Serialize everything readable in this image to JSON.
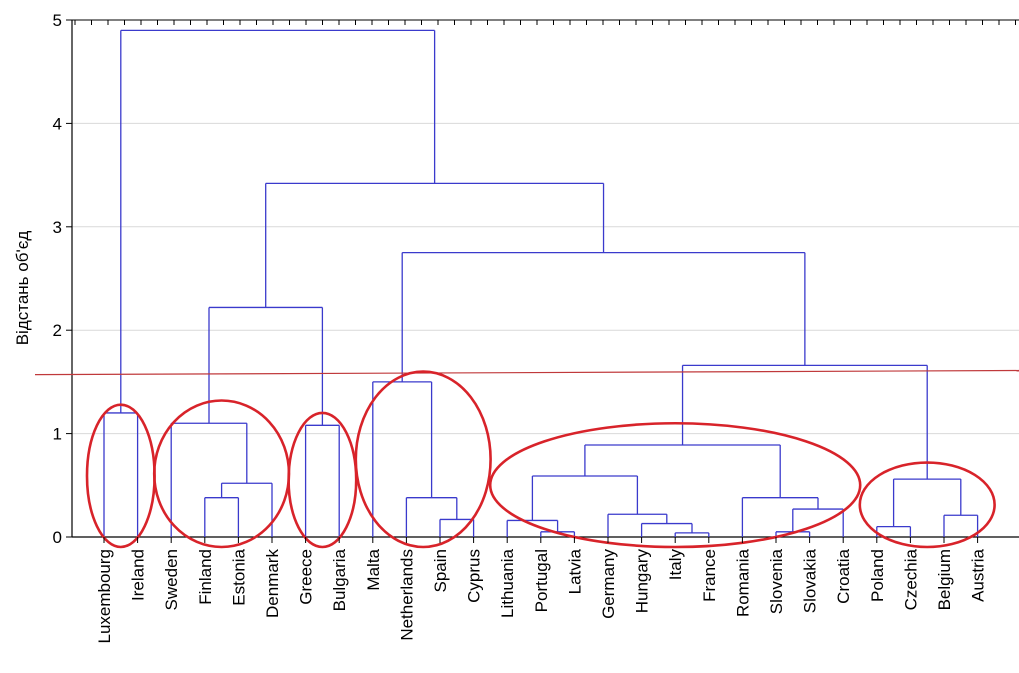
{
  "chart_data": {
    "type": "dendrogram",
    "ylabel": "Відстань об'єд",
    "ylim": [
      0,
      5
    ],
    "yticks": [
      0,
      1,
      2,
      3,
      4,
      5
    ],
    "grid": true,
    "colors": {
      "tree": "#3a3acc",
      "cutline": "#c0393b",
      "clusters": "#d8232a",
      "grid": "#d9d9d9"
    },
    "leaves": [
      "Luxembourg",
      "Ireland",
      "Sweden",
      "Finland",
      "Estonia",
      "Denmark",
      "Greece",
      "Bulgaria",
      "Malta",
      "Netherlands",
      "Spain",
      "Cyprus",
      "Lithuania",
      "Portugal",
      "Latvia",
      "Germany",
      "Hungary",
      "Italy",
      "France",
      "Romania",
      "Slovenia",
      "Slovakia",
      "Croatia",
      "Poland",
      "Czechia",
      "Belgium",
      "Austria"
    ],
    "merges": [
      {
        "a": "Italy",
        "b": "France",
        "height": 0.04,
        "id": "itfr"
      },
      {
        "a": "Portugal",
        "b": "Latvia",
        "height": 0.05,
        "id": "ptlv"
      },
      {
        "a": "Slovenia",
        "b": "Slovakia",
        "height": 0.05,
        "id": "sisk"
      },
      {
        "a": "Poland",
        "b": "Czechia",
        "height": 0.1,
        "id": "plcz"
      },
      {
        "a": "Hungary",
        "b": "itfr",
        "height": 0.13,
        "id": "hu_itfr"
      },
      {
        "a": "Lithuania",
        "b": "ptlv",
        "height": 0.16,
        "id": "lt_ptlv"
      },
      {
        "a": "Spain",
        "b": "Cyprus",
        "height": 0.17,
        "id": "escy"
      },
      {
        "a": "Belgium",
        "b": "Austria",
        "height": 0.21,
        "id": "beat"
      },
      {
        "a": "Germany",
        "b": "hu_itfr",
        "height": 0.22,
        "id": "de_grp"
      },
      {
        "a": "sisk",
        "b": "Croatia",
        "height": 0.27,
        "id": "sisk_hr"
      },
      {
        "a": "Finland",
        "b": "Estonia",
        "height": 0.38,
        "id": "fiee"
      },
      {
        "a": "Netherlands",
        "b": "escy",
        "height": 0.38,
        "id": "nl_grp"
      },
      {
        "a": "Romania",
        "b": "sisk_hr",
        "height": 0.38,
        "id": "ro_grp"
      },
      {
        "a": "fiee",
        "b": "Denmark",
        "height": 0.52,
        "id": "fiee_dk"
      },
      {
        "a": "plcz",
        "b": "beat",
        "height": 0.56,
        "id": "central"
      },
      {
        "a": "lt_ptlv",
        "b": "de_grp",
        "height": 0.59,
        "id": "baltic_de"
      },
      {
        "a": "baltic_de",
        "b": "ro_grp",
        "height": 0.89,
        "id": "mid"
      },
      {
        "a": "Greece",
        "b": "Bulgaria",
        "height": 1.08,
        "id": "grbg"
      },
      {
        "a": "Sweden",
        "b": "fiee_dk",
        "height": 1.1,
        "id": "nordic"
      },
      {
        "a": "Luxembourg",
        "b": "Ireland",
        "height": 1.2,
        "id": "luie"
      },
      {
        "a": "Malta",
        "b": "nl_grp",
        "height": 1.5,
        "id": "south"
      },
      {
        "a": "mid",
        "b": "central",
        "height": 1.66,
        "id": "east_west"
      },
      {
        "a": "nordic",
        "b": "grbg",
        "height": 2.22,
        "id": "north_se"
      },
      {
        "a": "south",
        "b": "east_west",
        "height": 2.75,
        "id": "big"
      },
      {
        "a": "north_se",
        "b": "big",
        "height": 3.42,
        "id": "main"
      },
      {
        "a": "luie",
        "b": "main",
        "height": 4.9,
        "id": "root"
      }
    ],
    "cut_line": {
      "from": 1.57,
      "to": 1.61
    },
    "cluster_groups": [
      {
        "first": "Luxembourg",
        "last": "Ireland",
        "top": 1.28
      },
      {
        "first": "Sweden",
        "last": "Denmark",
        "top": 1.32
      },
      {
        "first": "Greece",
        "last": "Bulgaria",
        "top": 1.2
      },
      {
        "first": "Malta",
        "last": "Cyprus",
        "top": 1.6
      },
      {
        "first": "Lithuania",
        "last": "Croatia",
        "top": 1.1
      },
      {
        "first": "Poland",
        "last": "Austria",
        "top": 0.72
      }
    ]
  }
}
